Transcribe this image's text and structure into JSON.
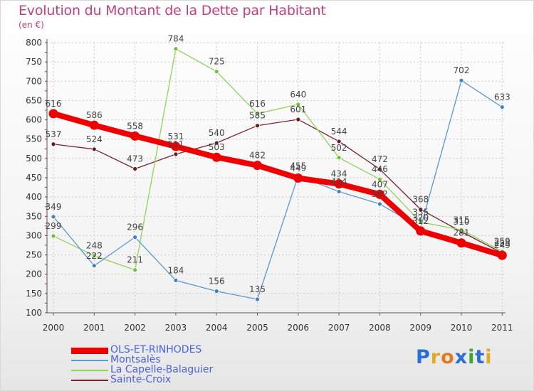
{
  "title": "Evolution du Montant de la Dette par Habitant",
  "subtitle": "(en €)",
  "logo": {
    "text": "Proxiti",
    "letters": [
      {
        "ch": "P",
        "color": "#2a6fd6"
      },
      {
        "ch": "r",
        "color": "#e6a81e"
      },
      {
        "ch": "o",
        "color": "#e37b1c"
      },
      {
        "ch": "x",
        "color": "#2a6fd6"
      },
      {
        "ch": "i",
        "color": "#3fa53a"
      },
      {
        "ch": "t",
        "color": "#2a6fd6"
      },
      {
        "ch": "i",
        "color": "#e6a81e"
      }
    ]
  },
  "chart_data": {
    "type": "line",
    "x": [
      "2000",
      "2001",
      "2002",
      "2003",
      "2004",
      "2005",
      "2006",
      "2007",
      "2008",
      "2009",
      "2010",
      "2011"
    ],
    "ylim": [
      100,
      800
    ],
    "yticks": [
      100,
      150,
      200,
      250,
      300,
      350,
      400,
      450,
      500,
      550,
      600,
      650,
      700,
      750,
      800
    ],
    "grid": true,
    "legend_position": "bottom-left",
    "series": [
      {
        "name": "Sainte-Croix",
        "color": "#7a2330",
        "point_color": "#6a1a1a",
        "width": 1.3,
        "radius": 3,
        "values": [
          537,
          524,
          473,
          511,
          540,
          585,
          601,
          544,
          472,
          368,
          310,
          255
        ],
        "labels": [
          "537",
          "524",
          "473",
          "511",
          "540",
          "585",
          "601",
          "544",
          "472",
          "368",
          "310",
          "255"
        ]
      },
      {
        "name": "La Capelle-Balaguier",
        "color": "#8fd45a",
        "point_color": "#6cc23a",
        "width": 1.3,
        "radius": 3,
        "values": [
          299,
          248,
          211,
          784,
          725,
          616,
          640,
          502,
          446,
          335,
          315,
          259
        ],
        "labels": [
          "299",
          "248",
          "211",
          "784",
          "725",
          "616",
          "640",
          "502",
          "446",
          "335",
          "315",
          "259"
        ]
      },
      {
        "name": "Montsalès",
        "color": "#5b98d0",
        "point_color": "#3e80c4",
        "width": 1.3,
        "radius": 3,
        "values": [
          349,
          222,
          296,
          184,
          156,
          135,
          455,
          414,
          382,
          320,
          702,
          633
        ],
        "labels": [
          "349",
          "222",
          "296",
          "184",
          "156",
          "135",
          "455",
          "414",
          "382",
          "320",
          "702",
          "633"
        ]
      },
      {
        "name": "OLS-ET-RINHODES",
        "color": "#ee0000",
        "point_color": "#ee0000",
        "width": 8,
        "radius": 6.5,
        "values": [
          616,
          586,
          558,
          531,
          503,
          482,
          449,
          434,
          407,
          312,
          281,
          249
        ],
        "labels": [
          "616",
          "586",
          "558",
          "531",
          "503",
          "482",
          "449",
          "434",
          "407",
          "312",
          "281",
          "249"
        ]
      }
    ],
    "legend_order": [
      "OLS-ET-RINHODES",
      "Montsalès",
      "La Capelle-Balaguier",
      "Sainte-Croix"
    ]
  }
}
